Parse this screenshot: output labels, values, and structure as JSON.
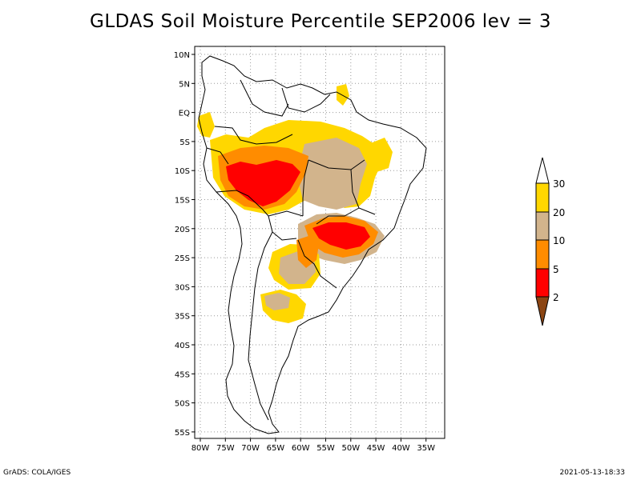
{
  "title": "GLDAS Soil Moisture Percentile SEP2006 lev = 3",
  "footer": {
    "left": "GrADS: COLA/IGES",
    "right": "2021-05-13-18:33"
  },
  "axes": {
    "lat_labels": [
      "10N",
      "5N",
      "EQ",
      "5S",
      "10S",
      "15S",
      "20S",
      "25S",
      "30S",
      "35S",
      "40S",
      "45S",
      "50S",
      "55S"
    ],
    "lon_labels": [
      "80W",
      "75W",
      "70W",
      "65W",
      "60W",
      "55W",
      "50W",
      "45W",
      "40W",
      "35W"
    ]
  },
  "colorbar": {
    "labels": [
      "30",
      "20",
      "10",
      "5",
      "2"
    ],
    "colors": {
      "gt30": "#ffffff",
      "b20_30": "#ffd700",
      "b10_20": "#d2b48c",
      "b5_10": "#ff8c00",
      "b2_5": "#ff0000",
      "lt2": "#8b4513"
    }
  },
  "chart_data": {
    "type": "heatmap",
    "title": "GLDAS Soil Moisture Percentile SEP2006 lev = 3",
    "x_range": [
      -81,
      -33
    ],
    "y_range": [
      -56,
      11
    ],
    "grid": true,
    "levels": [
      2,
      5,
      10,
      20,
      30
    ],
    "regions": [
      {
        "band": "20-30",
        "lon": [
          -70,
          -45
        ],
        "lat": [
          -12,
          -4
        ]
      },
      {
        "band": "5-10",
        "lon": [
          -72,
          -55
        ],
        "lat": [
          -14,
          -6
        ]
      },
      {
        "band": "2-5",
        "lon": [
          -75,
          -60
        ],
        "lat": [
          -15,
          -9
        ]
      },
      {
        "band": "10-20",
        "lon": [
          -58,
          -48
        ],
        "lat": [
          -16,
          -7
        ]
      },
      {
        "band": "2-5",
        "lon": [
          -54,
          -45
        ],
        "lat": [
          -22,
          -18
        ]
      },
      {
        "band": "5-10",
        "lon": [
          -58,
          -45
        ],
        "lat": [
          -26,
          -19
        ]
      },
      {
        "band": "20-30",
        "lon": [
          -66,
          -58
        ],
        "lat": [
          -35,
          -25
        ]
      },
      {
        "band": "10-20",
        "lon": [
          -63,
          -57
        ],
        "lat": [
          -30,
          -22
        ]
      }
    ]
  }
}
